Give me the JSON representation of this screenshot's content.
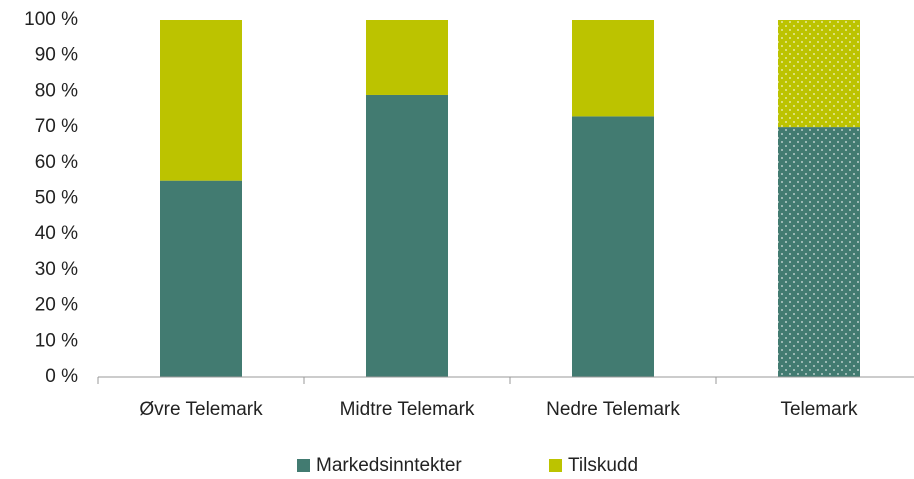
{
  "chart_data": {
    "type": "stacked_bar",
    "categories": [
      "Øvre Telemark",
      "Midtre Telemark",
      "Nedre Telemark",
      "Telemark"
    ],
    "series": [
      {
        "name": "Markedsinntekter",
        "color": "#427b71",
        "values": [
          55,
          79,
          73,
          70
        ]
      },
      {
        "name": "Tilskudd",
        "color": "#bcc300",
        "values": [
          45,
          21,
          27,
          30
        ]
      }
    ],
    "dotted": [
      false,
      false,
      false,
      true
    ],
    "ylim": [
      0,
      100
    ],
    "yticks": [
      {
        "value": 0,
        "label": "0 %"
      },
      {
        "value": 10,
        "label": "10 %"
      },
      {
        "value": 20,
        "label": "20 %"
      },
      {
        "value": 30,
        "label": "30 %"
      },
      {
        "value": 40,
        "label": "40 %"
      },
      {
        "value": 50,
        "label": "50 %"
      },
      {
        "value": 60,
        "label": "60 %"
      },
      {
        "value": 70,
        "label": "70 %"
      },
      {
        "value": 80,
        "label": "80 %"
      },
      {
        "value": 90,
        "label": "90 %"
      },
      {
        "value": 100,
        "label": "100 %"
      }
    ],
    "grid": false,
    "legend": "bottom"
  }
}
